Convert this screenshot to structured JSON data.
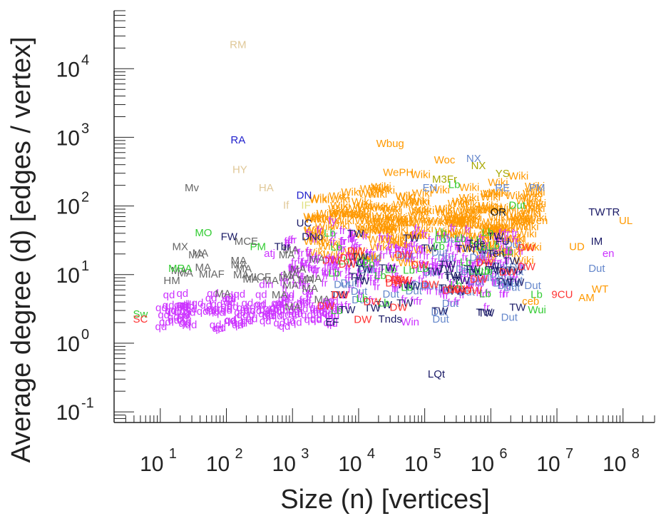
{
  "chart_data": {
    "type": "scatter",
    "title": "",
    "xlabel": "Size (n) [vertices]",
    "ylabel": "Average degree (d) [edges / vertex]",
    "x_scale": "log",
    "y_scale": "log",
    "xlim": [
      2,
      300000000
    ],
    "ylim": [
      0.07,
      70000
    ],
    "grid": false,
    "legend": "none",
    "x_ticks": [
      {
        "base": "10",
        "exp": "1",
        "value": 10
      },
      {
        "base": "10",
        "exp": "2",
        "value": 100
      },
      {
        "base": "10",
        "exp": "3",
        "value": 1000
      },
      {
        "base": "10",
        "exp": "4",
        "value": 10000
      },
      {
        "base": "10",
        "exp": "5",
        "value": 100000
      },
      {
        "base": "10",
        "exp": "6",
        "value": 1000000
      },
      {
        "base": "10",
        "exp": "7",
        "value": 10000000
      },
      {
        "base": "10",
        "exp": "8",
        "value": 100000000
      }
    ],
    "y_ticks": [
      {
        "base": "10",
        "exp": "-1",
        "value": 0.1
      },
      {
        "base": "10",
        "exp": "0",
        "value": 1
      },
      {
        "base": "10",
        "exp": "1",
        "value": 10
      },
      {
        "base": "10",
        "exp": "2",
        "value": 100
      },
      {
        "base": "10",
        "exp": "3",
        "value": 1000
      },
      {
        "base": "10",
        "exp": "4",
        "value": 10000
      }
    ],
    "colors": {
      "axis": "#222222",
      "orange": "#ff9900",
      "magenta": "#cc33ff",
      "navy": "#1a1a66",
      "blue": "#1f1fcc",
      "tan": "#e0c898",
      "olive": "#a8a800",
      "green": "#33cc33",
      "red": "#ff3333",
      "steel": "#6688cc",
      "gray": "#666666",
      "black": "#111111"
    },
    "points": [
      {
        "label": "RM",
        "x": 150,
        "y": 22000,
        "color": "#e0c898"
      },
      {
        "label": "RA",
        "x": 150,
        "y": 900,
        "color": "#1f1fcc"
      },
      {
        "label": "HY",
        "x": 160,
        "y": 330,
        "color": "#e0c898"
      },
      {
        "label": "HA",
        "x": 400,
        "y": 180,
        "color": "#e0c898"
      },
      {
        "label": "Mv",
        "x": 30,
        "y": 180,
        "color": "#666666"
      },
      {
        "label": "If",
        "x": 800,
        "y": 100,
        "color": "#e0c898"
      },
      {
        "label": "IF",
        "x": 1600,
        "y": 100,
        "color": "#e0e080"
      },
      {
        "label": "Wbug",
        "x": 30000,
        "y": 800,
        "color": "#ff9900"
      },
      {
        "label": "Woc",
        "x": 200000,
        "y": 460,
        "color": "#ff9900"
      },
      {
        "label": "NX",
        "x": 550000,
        "y": 480,
        "color": "#6688cc"
      },
      {
        "label": "NX",
        "x": 650000,
        "y": 380,
        "color": "#a8a800"
      },
      {
        "label": "YS",
        "x": 1500000,
        "y": 290,
        "color": "#a8a800"
      },
      {
        "label": "WePH",
        "x": 40000,
        "y": 300,
        "color": "#ff9900"
      },
      {
        "label": "M3Fr",
        "x": 200000,
        "y": 240,
        "color": "#a8a800"
      },
      {
        "label": "EN",
        "x": 120000,
        "y": 180,
        "color": "#6688cc"
      },
      {
        "label": "Lb",
        "x": 280000,
        "y": 200,
        "color": "#33cc33"
      },
      {
        "label": "RE",
        "x": 1500000,
        "y": 180,
        "color": "#6688cc"
      },
      {
        "label": "PM",
        "x": 5000000,
        "y": 180,
        "color": "#6688cc"
      },
      {
        "label": "Dut",
        "x": 2500000,
        "y": 100,
        "color": "#33cc33"
      },
      {
        "label": "DN",
        "x": 1500,
        "y": 140,
        "color": "#1f1fcc"
      },
      {
        "label": "OR",
        "x": 1300000,
        "y": 80,
        "color": "#111111"
      },
      {
        "label": "TW",
        "x": 40000000,
        "y": 80,
        "color": "#1a1a66"
      },
      {
        "label": "TR",
        "x": 70000000,
        "y": 80,
        "color": "#1a1a66"
      },
      {
        "label": "UL",
        "x": 110000000,
        "y": 60,
        "color": "#ff9900"
      },
      {
        "label": "Wen",
        "x": 5000000,
        "y": 60,
        "color": "#ff9900"
      },
      {
        "label": "IM",
        "x": 40000000,
        "y": 30,
        "color": "#1a1a66"
      },
      {
        "label": "UD",
        "x": 20000000,
        "y": 25,
        "color": "#ff9900"
      },
      {
        "label": "en",
        "x": 60000000,
        "y": 20,
        "color": "#cc33ff"
      },
      {
        "label": "Dut",
        "x": 40000000,
        "y": 12,
        "color": "#6688cc"
      },
      {
        "label": "WT",
        "x": 45000000,
        "y": 6,
        "color": "#ff9900"
      },
      {
        "label": "AM",
        "x": 28000000,
        "y": 4.5,
        "color": "#ff9900"
      },
      {
        "label": "UC",
        "x": 1500,
        "y": 55,
        "color": "#1a1a66"
      },
      {
        "label": "fy",
        "x": 4000,
        "y": 60,
        "color": "#cc33ff"
      },
      {
        "label": "DNo",
        "x": 2000,
        "y": 35,
        "color": "#1a1a66"
      },
      {
        "label": "Tbr",
        "x": 700,
        "y": 25,
        "color": "#1a1a66"
      },
      {
        "label": "atj",
        "x": 450,
        "y": 20,
        "color": "#cc33ff"
      },
      {
        "label": "PM",
        "x": 300,
        "y": 25,
        "color": "#33cc33"
      },
      {
        "label": "MO",
        "x": 45,
        "y": 40,
        "color": "#33cc33"
      },
      {
        "label": "FW",
        "x": 110,
        "y": 35,
        "color": "#1a1a66"
      },
      {
        "label": "MCE",
        "x": 200,
        "y": 30,
        "color": "#666666"
      },
      {
        "label": "MX",
        "x": 20,
        "y": 25,
        "color": "#666666"
      },
      {
        "label": "MRA",
        "x": 20,
        "y": 12,
        "color": "#33cc33"
      },
      {
        "label": "MIAF",
        "x": 60,
        "y": 10,
        "color": "#666666"
      },
      {
        "label": "MICF",
        "x": 300,
        "y": 9,
        "color": "#666666"
      },
      {
        "label": "HM",
        "x": 15,
        "y": 8,
        "color": "#666666"
      },
      {
        "label": "din",
        "x": 400,
        "y": 7,
        "color": "#cc33ff"
      },
      {
        "label": "Sw",
        "x": 5,
        "y": 2.6,
        "color": "#33cc33"
      },
      {
        "label": "SC",
        "x": 5,
        "y": 2.2,
        "color": "#ff3333"
      },
      {
        "label": "EF",
        "x": 4000,
        "y": 2,
        "color": "#1a1a66"
      },
      {
        "label": "Tnds",
        "x": 30000,
        "y": 2.2,
        "color": "#1a1a66"
      },
      {
        "label": "Win",
        "x": 60000,
        "y": 2,
        "color": "#cc33ff"
      },
      {
        "label": "LQt",
        "x": 150000,
        "y": 0.35,
        "color": "#1a1a66"
      },
      {
        "label": "Tde",
        "x": 600000,
        "y": 28,
        "color": "#1a1a66"
      },
      {
        "label": "FU",
        "x": 1500000,
        "y": 30,
        "color": "#1a1a66"
      },
      {
        "label": "Ten",
        "x": 1200000,
        "y": 20,
        "color": "#1a1a66"
      },
      {
        "label": "Wui",
        "x": 5000000,
        "y": 3,
        "color": "#33cc33"
      },
      {
        "label": "ceb",
        "x": 4000000,
        "y": 4,
        "color": "#ff9900"
      },
      {
        "label": "9CU",
        "x": 12000000,
        "y": 5,
        "color": "#ff3333"
      }
    ],
    "clusters": [
      {
        "label": "Wiki",
        "color": "#ff9900",
        "x": [
          2000,
          5000000
        ],
        "y": [
          12,
          300
        ],
        "count": 200
      },
      {
        "label": "fr",
        "color": "#cc33ff",
        "x": [
          700,
          3000000
        ],
        "y": [
          3,
          60
        ],
        "count": 280
      },
      {
        "label": "qd",
        "color": "#cc33ff",
        "x": [
          10,
          5000
        ],
        "y": [
          1.5,
          6
        ],
        "count": 120
      },
      {
        "label": "Dut",
        "color": "#6688cc",
        "x": [
          5000,
          5000000
        ],
        "y": [
          2,
          40
        ],
        "count": 40
      },
      {
        "label": "TW",
        "color": "#1a1a66",
        "x": [
          5000,
          5000000
        ],
        "y": [
          2,
          50
        ],
        "count": 40
      },
      {
        "label": "Lb",
        "color": "#33cc33",
        "x": [
          3000,
          5000000
        ],
        "y": [
          2,
          60
        ],
        "count": 30
      },
      {
        "label": "DW",
        "color": "#ff3333",
        "x": [
          3000,
          5000000
        ],
        "y": [
          2,
          30
        ],
        "count": 25
      },
      {
        "label": "MA",
        "color": "#666666",
        "x": [
          15,
          3000
        ],
        "y": [
          3,
          40
        ],
        "count": 25
      }
    ]
  }
}
